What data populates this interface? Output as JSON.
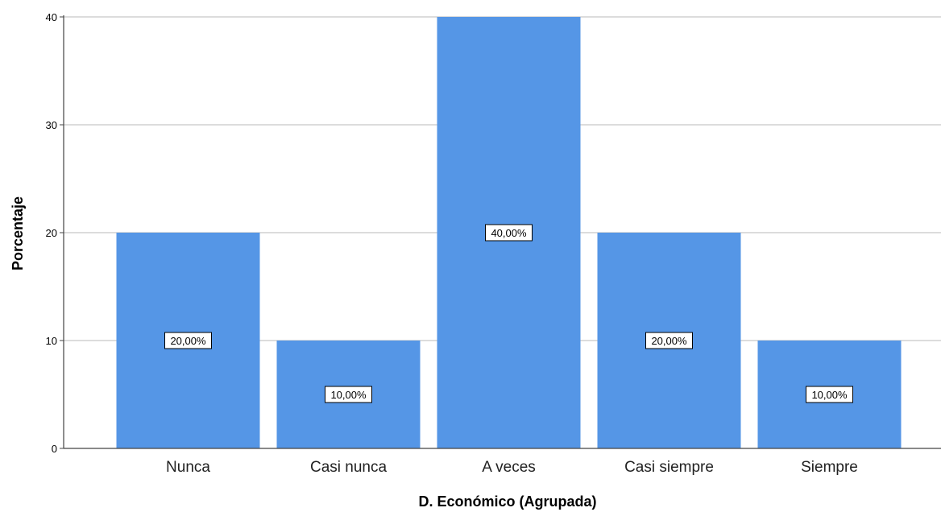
{
  "chart_data": {
    "type": "bar",
    "categories": [
      "Nunca",
      "Casi nunca",
      "A veces",
      "Casi siempre",
      "Siempre"
    ],
    "values": [
      20,
      10,
      40,
      20,
      10
    ],
    "data_labels": [
      "20,00%",
      "10,00%",
      "40,00%",
      "20,00%",
      "10,00%"
    ],
    "title": "",
    "xlabel": "D. Económico (Agrupada)",
    "ylabel": "Porcentaje",
    "ylim": [
      0,
      40
    ],
    "yticks": [
      0,
      10,
      20,
      30,
      40
    ],
    "grid": true,
    "bar_color": "#5596e6",
    "grid_color": "#c8c8c8",
    "axis_color": "#444444"
  }
}
